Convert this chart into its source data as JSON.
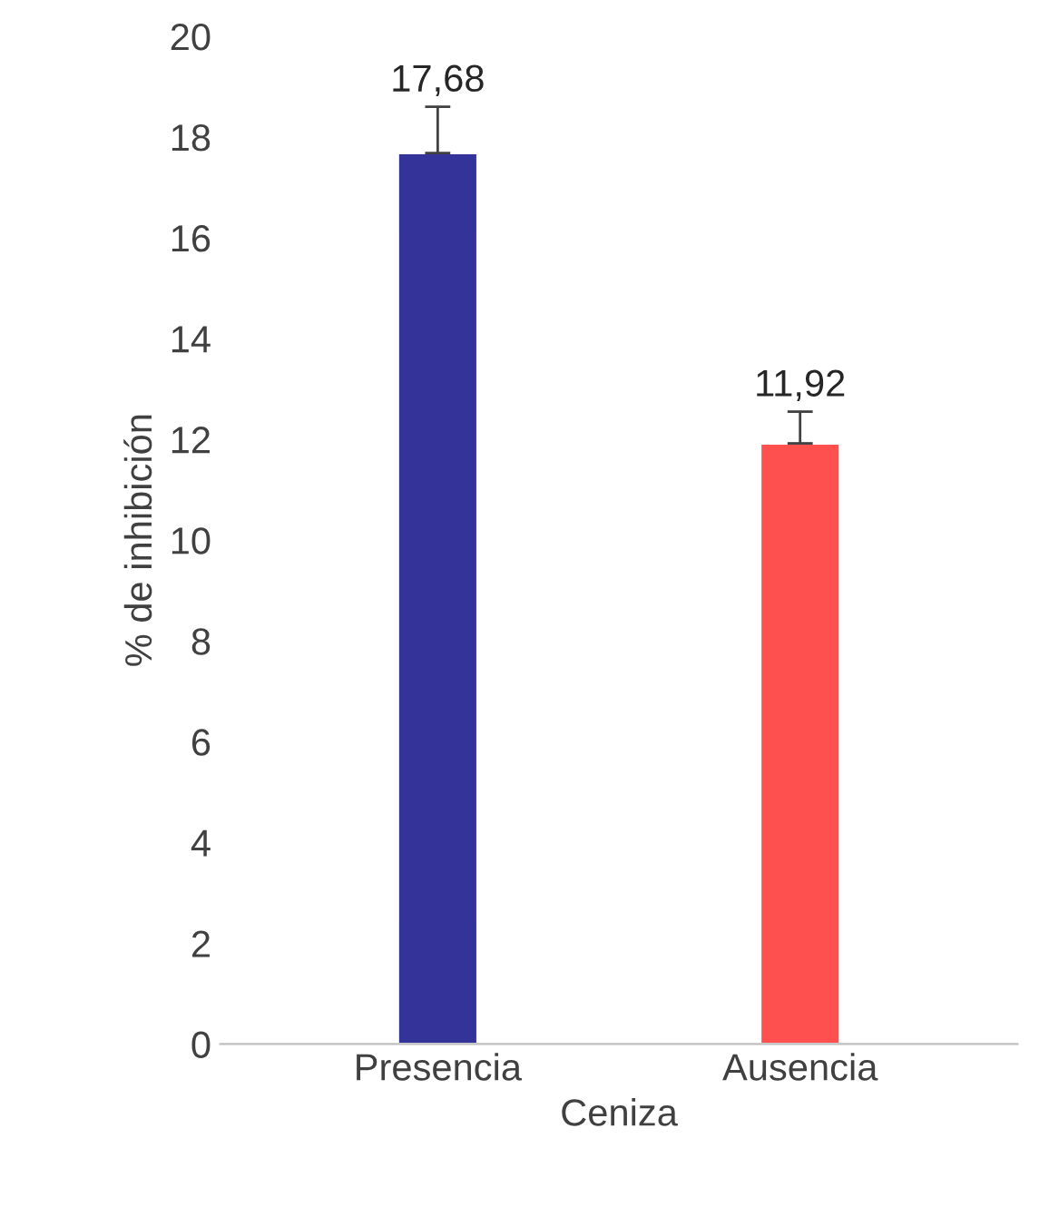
{
  "chart_data": {
    "type": "bar",
    "xlabel": "Ceniza",
    "ylabel": "% de inhibición",
    "categories": [
      "Presencia",
      "Ausencia"
    ],
    "values": [
      17.68,
      11.92
    ],
    "colors": [
      "#333399",
      "#ff5050"
    ],
    "errors": [
      [
        17.68,
        18.6
      ],
      [
        11.92,
        12.55
      ]
    ],
    "value_labels": [
      "17,68",
      "11,92"
    ],
    "ylim": [
      0,
      20
    ],
    "yticks": [
      0,
      2,
      4,
      6,
      8,
      10,
      12,
      14,
      16,
      18,
      20
    ],
    "grid": false,
    "legend": false
  }
}
